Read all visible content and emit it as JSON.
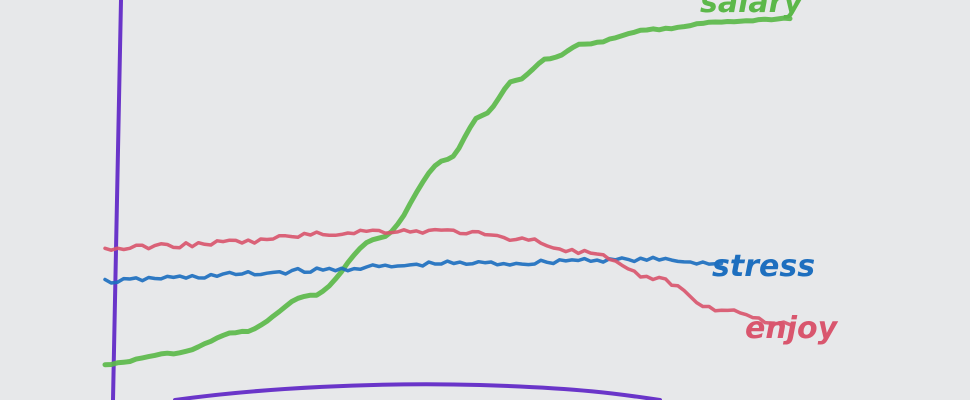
{
  "chart_data": {
    "type": "line",
    "title": "",
    "xlabel": "",
    "ylabel": "",
    "grid": false,
    "legend": "inline-right",
    "series": [
      {
        "name": "salary",
        "color": "#5cb84a",
        "x": [
          0,
          10,
          20,
          30,
          40,
          50,
          55,
          60,
          65,
          70,
          80,
          90,
          100
        ],
        "y": [
          3,
          6,
          12,
          22,
          38,
          60,
          72,
          82,
          88,
          92,
          96,
          98,
          99
        ]
      },
      {
        "name": "stress",
        "color": "#1e6fbf",
        "x": [
          0,
          10,
          20,
          30,
          40,
          50,
          60,
          70,
          80,
          90
        ],
        "y": [
          26,
          27,
          28,
          29,
          30,
          31,
          31,
          32,
          32,
          31
        ]
      },
      {
        "name": "enjoy",
        "color": "#d9566e",
        "x": [
          0,
          10,
          20,
          30,
          40,
          50,
          60,
          70,
          80,
          90,
          100
        ],
        "y": [
          35,
          36,
          37,
          39,
          40,
          40,
          38,
          34,
          27,
          18,
          14
        ]
      }
    ],
    "xlim": [
      0,
      100
    ],
    "ylim": [
      0,
      100
    ],
    "labels": {
      "salary": "salary",
      "stress": "stress",
      "enjoy": "enjoy"
    },
    "axis_color": "#6a35c9"
  }
}
